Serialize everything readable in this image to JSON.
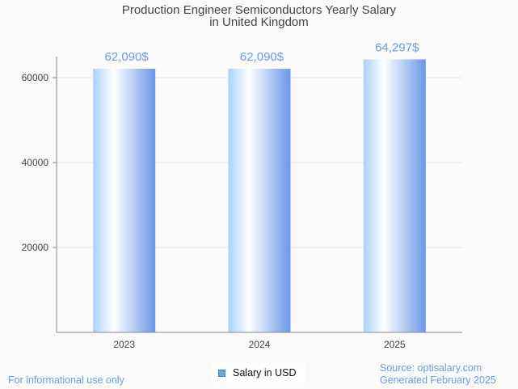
{
  "chart_data": {
    "type": "bar",
    "title": "Production Engineer Semiconductors Yearly Salary",
    "subtitle": "in United Kingdom",
    "categories": [
      "2023",
      "2024",
      "2025"
    ],
    "series": [
      {
        "name": "Salary in USD",
        "values": [
          62090,
          62090,
          64297
        ]
      }
    ],
    "data_labels": [
      "62,090$",
      "62,090$",
      "64,297$"
    ],
    "xlabel": "",
    "ylabel": "",
    "yticks": [
      20000,
      40000,
      60000
    ],
    "ytick_labels": [
      "20000",
      "40000",
      "60000"
    ],
    "ylim": [
      0,
      66000
    ],
    "grid": true,
    "legend": "bottom-center"
  },
  "colors": {
    "bar_light": "#a9d1fb",
    "bar_mid": "#ffffff",
    "bar_dark": "#6a97e8",
    "label": "#6e9be0"
  },
  "footer": {
    "disclaimer": "For informational use only",
    "source": "Source: optisalary.com",
    "generated": "Generated February 2025"
  }
}
